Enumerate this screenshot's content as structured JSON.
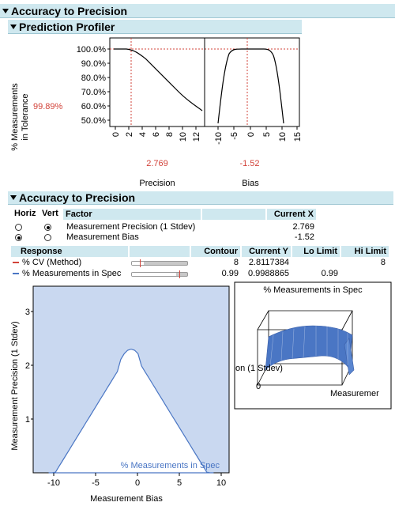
{
  "outline_title": "Accuracy to Precision",
  "profiler": {
    "title": "Prediction Profiler",
    "y_label_line1": "% Measurements",
    "y_label_line2": "in Tolerance",
    "y_current": "99.89%",
    "y_ticks": [
      "100.0%",
      "90.0%",
      "80.0%",
      "70.0%",
      "60.0%",
      "50.0%"
    ],
    "precision_ticks": [
      "0",
      "2",
      "4",
      "6",
      "8",
      "10",
      "12"
    ],
    "bias_ticks": [
      "-10",
      "-5",
      "0",
      "5",
      "10",
      "15"
    ],
    "precision_value": "2.769",
    "bias_value": "-1.52",
    "precision_label": "Precision",
    "bias_label": "Bias"
  },
  "contour": {
    "title": "Accuracy to Precision",
    "factor_headers": {
      "horiz": "Horiz",
      "vert": "Vert",
      "factor": "Factor",
      "current_x": "Current X"
    },
    "factors": [
      {
        "name": "Measurement Precision (1 Stdev)",
        "value": "2.769",
        "horiz": false,
        "vert": true
      },
      {
        "name": "Measurement Bias",
        "value": "-1.52",
        "horiz": true,
        "vert": false
      }
    ],
    "response_headers": {
      "response": "Response",
      "contour": "Contour",
      "current_y": "Current Y",
      "lo_limit": "Lo Limit",
      "hi_limit": "Hi Limit"
    },
    "responses": [
      {
        "name": "% CV (Method)",
        "color": "#d2433a",
        "contour": "8",
        "current_y": "2.8117384",
        "lo_limit": "",
        "hi_limit": "8",
        "slider_fill": 0.22,
        "slider_mark": 0.14
      },
      {
        "name": "% Measurements in Spec",
        "color": "#4a76c4",
        "contour": "0.99",
        "current_y": "0.9988865",
        "lo_limit": "0.99",
        "hi_limit": "",
        "slider_fill": 0.8,
        "slider_mark": 0.86
      }
    ]
  },
  "contour_plot": {
    "x_ticks": [
      "-10",
      "-5",
      "0",
      "5",
      "10"
    ],
    "y_ticks": [
      "1",
      "2",
      "3"
    ],
    "x_label": "Measurement Bias",
    "y_label": "Measurement Precision (1 Stdev)",
    "region_label": "% Measurements in Spec",
    "fill_color": "#c9d8f0",
    "line_color": "#4a76c4"
  },
  "surface_plot": {
    "title": "% Measurements in Spec",
    "axis_label_left": "on (1 Stdev)",
    "axis_label_zero": "0",
    "axis_label_right": "Measuremer"
  }
}
